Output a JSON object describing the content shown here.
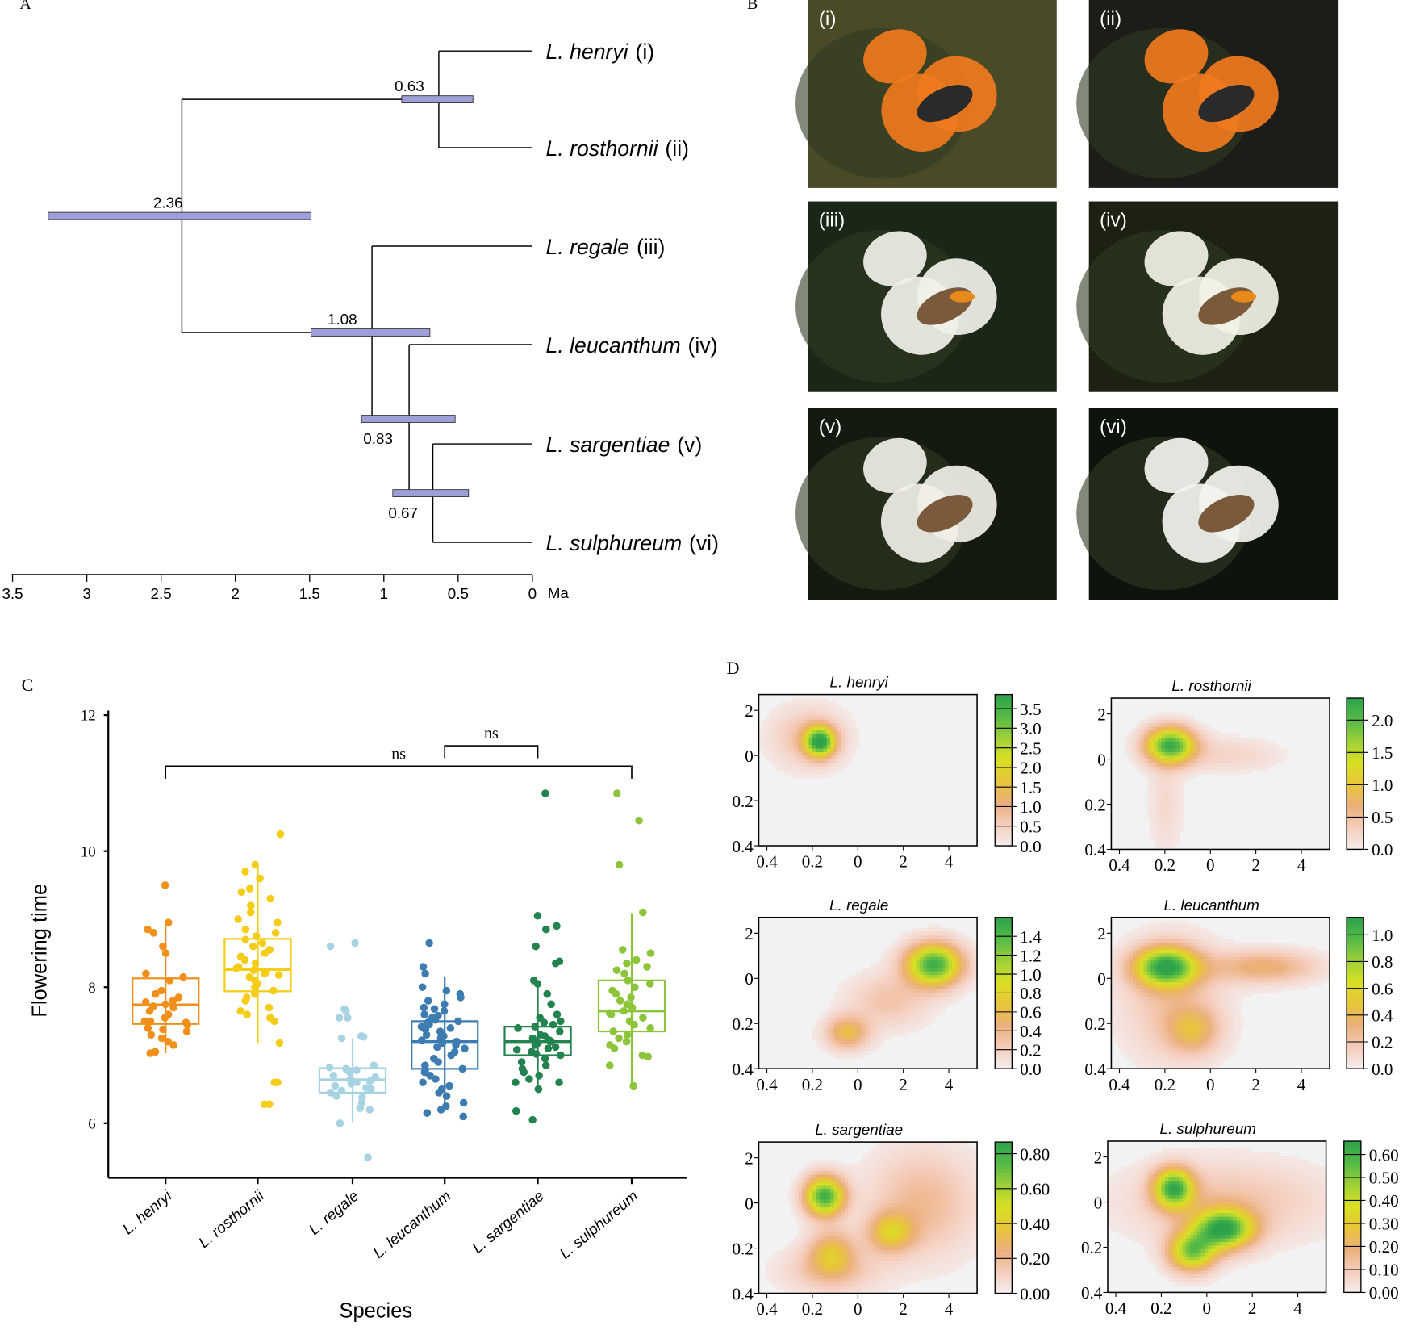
{
  "panel_letters": {
    "a": "A",
    "b": "B",
    "c": "C",
    "d": "D"
  },
  "photos": [
    {
      "label": "(i)",
      "flower": "#f07a1e",
      "bg": "#4a4a26"
    },
    {
      "label": "(ii)",
      "flower": "#f07a1e",
      "bg": "#1c1c18"
    },
    {
      "label": "(iii)",
      "flower": "#f1f1ea",
      "bg": "#1a2616"
    },
    {
      "label": "(iv)",
      "flower": "#f3f2e6",
      "bg": "#1c2112"
    },
    {
      "label": "(v)",
      "flower": "#f1efe8",
      "bg": "#141a10"
    },
    {
      "label": "(vi)",
      "flower": "#f4f4ef",
      "bg": "#0f130d"
    }
  ],
  "chart_data": [
    {
      "type": "tree",
      "axis_unit": "Ma",
      "xlim": [
        3.5,
        0
      ],
      "ticks": [
        "3.5",
        "3",
        "2.5",
        "2",
        "1.5",
        "1",
        "0.5",
        "0"
      ],
      "tips": [
        {
          "name": "L. henryi",
          "roman": "(i)"
        },
        {
          "name": "L. rosthornii",
          "roman": "(ii)"
        },
        {
          "name": "L. regale",
          "roman": "(iii)"
        },
        {
          "name": "L. leucanthum",
          "roman": "(iv)"
        },
        {
          "name": "L. sargentiae",
          "roman": "(v)"
        },
        {
          "name": "L. sulphureum",
          "roman": "(vi)"
        }
      ],
      "nodes": [
        {
          "label": "2.36",
          "age": 2.36,
          "hpd": [
            3.26,
            1.49
          ],
          "children": [
            "n063",
            "n108"
          ],
          "id": "root"
        },
        {
          "label": "0.63",
          "age": 0.63,
          "hpd": [
            0.88,
            0.4
          ],
          "children": [
            0,
            1
          ],
          "id": "n063"
        },
        {
          "label": "1.08",
          "age": 1.08,
          "hpd": [
            1.49,
            0.69
          ],
          "children": [
            2,
            "n083"
          ],
          "id": "n108"
        },
        {
          "label": "0.83",
          "age": 0.83,
          "hpd": [
            1.15,
            0.52
          ],
          "children": [
            3,
            "n067"
          ],
          "id": "n083"
        },
        {
          "label": "0.67",
          "age": 0.67,
          "hpd": [
            0.94,
            0.43
          ],
          "children": [
            4,
            5
          ],
          "id": "n067"
        }
      ],
      "hpd_color": "#9d9fd6"
    },
    {
      "type": "box",
      "xlabel": "Species",
      "ylabel": "Flowering time",
      "ylim": [
        5.2,
        12
      ],
      "yticks": [
        "6",
        "8",
        "10",
        "12"
      ],
      "categories": [
        "L. henryi",
        "L. rosthornii",
        "L. regale",
        "L. leucanthum",
        "L. sargentiae",
        "L. sulphureum"
      ],
      "colors": [
        "#f0901a",
        "#f5cc17",
        "#a8d3e2",
        "#3d7cb0",
        "#23834e",
        "#8cc43a"
      ],
      "boxes": [
        {
          "q1": 7.46,
          "median": 7.74,
          "q3": 8.13,
          "whisker_low": 7.03,
          "whisker_high": 8.95
        },
        {
          "q1": 7.94,
          "median": 8.26,
          "q3": 8.71,
          "whisker_low": 7.18,
          "whisker_high": 9.8
        },
        {
          "q1": 6.45,
          "median": 6.64,
          "q3": 6.81,
          "whisker_low": 6.02,
          "whisker_high": 7.25
        },
        {
          "q1": 6.8,
          "median": 7.2,
          "q3": 7.5,
          "whisker_low": 6.2,
          "whisker_high": 8.15
        },
        {
          "q1": 7.0,
          "median": 7.2,
          "q3": 7.42,
          "whisker_low": 6.47,
          "whisker_high": 8.03
        },
        {
          "q1": 7.35,
          "median": 7.65,
          "q3": 8.1,
          "whisker_low": 6.54,
          "whisker_high": 9.09
        }
      ],
      "points": [
        [
          9.5,
          8.95,
          8.85,
          8.8,
          8.6,
          8.5,
          8.2,
          8.15,
          8.1,
          7.95,
          7.9,
          7.85,
          7.8,
          7.78,
          7.75,
          7.72,
          7.7,
          7.65,
          7.6,
          7.55,
          7.5,
          7.5,
          7.48,
          7.45,
          7.4,
          7.38,
          7.35,
          7.3,
          7.25,
          7.2,
          7.15,
          7.05,
          7.03
        ],
        [
          10.25,
          9.8,
          9.7,
          9.6,
          9.45,
          9.4,
          9.3,
          9.2,
          9.1,
          9.0,
          8.95,
          8.85,
          8.8,
          8.75,
          8.7,
          8.65,
          8.6,
          8.55,
          8.5,
          8.45,
          8.4,
          8.35,
          8.3,
          8.28,
          8.25,
          8.22,
          8.2,
          8.18,
          8.15,
          8.1,
          8.05,
          8.0,
          7.95,
          7.93,
          7.9,
          7.85,
          7.8,
          7.7,
          7.65,
          7.6,
          7.55,
          7.5,
          7.18,
          6.6,
          6.6,
          6.28,
          6.28
        ],
        [
          8.65,
          8.6,
          7.68,
          7.65,
          7.55,
          7.55,
          7.28,
          7.27,
          7.25,
          6.85,
          6.82,
          6.8,
          6.78,
          6.75,
          6.7,
          6.68,
          6.65,
          6.62,
          6.6,
          6.58,
          6.55,
          6.52,
          6.5,
          6.48,
          6.45,
          6.4,
          6.38,
          6.3,
          6.22,
          6.2,
          6.0,
          5.5
        ],
        [
          8.65,
          8.3,
          8.2,
          8.0,
          7.95,
          7.9,
          7.85,
          7.8,
          7.75,
          7.7,
          7.68,
          7.65,
          7.6,
          7.58,
          7.55,
          7.52,
          7.5,
          7.48,
          7.45,
          7.42,
          7.4,
          7.38,
          7.35,
          7.3,
          7.28,
          7.25,
          7.22,
          7.2,
          7.18,
          7.15,
          7.12,
          7.1,
          7.05,
          7.0,
          6.95,
          6.9,
          6.85,
          6.8,
          6.78,
          6.75,
          6.7,
          6.65,
          6.6,
          6.55,
          6.5,
          6.45,
          6.4,
          6.3,
          6.25,
          6.2,
          6.15,
          6.1
        ],
        [
          10.85,
          9.05,
          8.9,
          8.85,
          8.6,
          8.38,
          8.35,
          8.1,
          8.05,
          7.9,
          7.75,
          7.6,
          7.55,
          7.5,
          7.48,
          7.45,
          7.42,
          7.4,
          7.35,
          7.3,
          7.28,
          7.25,
          7.22,
          7.2,
          7.18,
          7.15,
          7.12,
          7.1,
          7.08,
          7.05,
          7.02,
          7.0,
          6.95,
          6.9,
          6.85,
          6.8,
          6.75,
          6.7,
          6.65,
          6.6,
          6.6,
          6.5,
          6.18,
          6.05
        ],
        [
          10.85,
          10.45,
          9.8,
          9.1,
          8.55,
          8.5,
          8.4,
          8.35,
          8.3,
          8.25,
          8.2,
          8.1,
          8.05,
          8.0,
          7.95,
          7.9,
          7.85,
          7.8,
          7.75,
          7.7,
          7.65,
          7.62,
          7.6,
          7.55,
          7.5,
          7.45,
          7.4,
          7.35,
          7.3,
          7.25,
          7.2,
          7.15,
          7.1,
          7.0,
          6.98,
          6.85,
          6.55
        ]
      ],
      "annotations": [
        {
          "text": "ns",
          "from": 3,
          "to": 4,
          "level": 11.55
        },
        {
          "text": "ns",
          "from": 0,
          "to": 5,
          "level": 11.25
        }
      ]
    },
    {
      "type": "heatmap",
      "xlim": [
        -4.2,
        5.4
      ],
      "ylim": [
        -4,
        2.7
      ],
      "xticks": [
        "0.4",
        "0.2",
        "0",
        "2",
        "4"
      ],
      "yticks": [
        "2",
        "0",
        "0.2",
        "0.4"
      ],
      "colorscale": [
        "#f4eeee",
        "#f5cdbd",
        "#ebb07c",
        "#e8c43a",
        "#d9e024",
        "#9fd138",
        "#55ba46",
        "#2ea24a"
      ],
      "panels": [
        {
          "title": "L. henryi",
          "cbar_max": 3.86,
          "cbar_ticks": [
            "0.0",
            "0.5",
            "1.0",
            "1.5",
            "2.0",
            "2.5",
            "3.0",
            "3.5"
          ],
          "cbar_step": 0.5,
          "peaks": [
            [
              -1.5,
              0.6,
              0.45,
              0.45,
              1
            ],
            [
              -2.0,
              0.8,
              1.1,
              0.9,
              0.22
            ]
          ]
        },
        {
          "title": "L. rosthornii",
          "cbar_max": 2.34,
          "cbar_ticks": [
            "0.0",
            "0.5",
            "1.0",
            "1.5",
            "2.0"
          ],
          "cbar_step": 0.5,
          "peaks": [
            [
              -1.6,
              0.6,
              0.75,
              0.55,
              1
            ],
            [
              -1.8,
              -2.0,
              0.5,
              1.5,
              0.1
            ],
            [
              1.0,
              0.2,
              1.5,
              0.5,
              0.12
            ]
          ]
        },
        {
          "title": "L. regale",
          "cbar_max": 1.6,
          "cbar_ticks": [
            "0.0",
            "0.2",
            "0.4",
            "0.6",
            "0.8",
            "1.0",
            "1.2",
            "1.4"
          ],
          "cbar_step": 0.2,
          "peaks": [
            [
              3.5,
              0.6,
              0.85,
              0.65,
              1
            ],
            [
              -0.3,
              -2.4,
              0.65,
              0.5,
              0.42
            ],
            [
              1.5,
              -1.0,
              1.2,
              0.8,
              0.2
            ]
          ]
        },
        {
          "title": "L. leucanthum",
          "cbar_max": 1.13,
          "cbar_ticks": [
            "0.0",
            "0.2",
            "0.4",
            "0.6",
            "0.8",
            "1.0"
          ],
          "cbar_step": 0.2,
          "peaks": [
            [
              -1.8,
              0.5,
              0.95,
              0.6,
              1
            ],
            [
              2.5,
              0.5,
              1.6,
              0.5,
              0.33
            ],
            [
              -0.6,
              -2.3,
              0.8,
              0.7,
              0.33
            ],
            [
              -1.5,
              -1.0,
              1.5,
              1.8,
              0.2
            ]
          ]
        },
        {
          "title": "L. sargentiae",
          "cbar_max": 0.867,
          "cbar_ticks": [
            "0.00",
            "0.20",
            "0.40",
            "0.60",
            "0.80"
          ],
          "cbar_step": 0.2,
          "peaks": [
            [
              -1.3,
              0.3,
              0.6,
              0.6,
              1
            ],
            [
              1.6,
              -1.3,
              0.7,
              0.6,
              0.45
            ],
            [
              -1.0,
              -2.2,
              0.7,
              0.7,
              0.4
            ],
            [
              3.0,
              0.0,
              1.6,
              1.6,
              0.25
            ],
            [
              -1.0,
              -3.0,
              1.5,
              0.7,
              0.2
            ]
          ]
        },
        {
          "title": "L. sulphureum",
          "cbar_max": 0.658,
          "cbar_ticks": [
            "0.00",
            "0.10",
            "0.20",
            "0.30",
            "0.40",
            "0.50",
            "0.60"
          ],
          "cbar_step": 0.1,
          "peaks": [
            [
              -1.3,
              0.6,
              0.6,
              0.6,
              0.95
            ],
            [
              0.9,
              -1.2,
              0.9,
              0.6,
              1
            ],
            [
              -0.5,
              -2.2,
              0.7,
              0.6,
              0.8
            ],
            [
              1.0,
              0.0,
              3.0,
              1.2,
              0.2
            ]
          ]
        }
      ]
    }
  ]
}
